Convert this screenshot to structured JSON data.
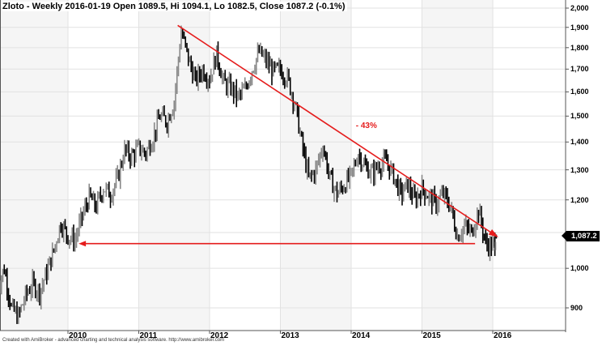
{
  "chart_data": {
    "type": "candlestick",
    "title": "Zloto - Weekly 2016-01-19 Open 1089.5, Hi 1094.1, Lo 1082.5, Close 1087.2 (-0.1%)",
    "instrument": "Zloto",
    "interval": "Weekly",
    "last_bar": {
      "date": "2016-01-19",
      "open": 1089.5,
      "high": 1094.1,
      "low": 1082.5,
      "close": 1087.2,
      "change_pct": -0.1
    },
    "yaxis": {
      "scale": "log",
      "position": "right",
      "ticks": [
        2000,
        1900,
        1800,
        1700,
        1600,
        1500,
        1400,
        1300,
        1200,
        1100,
        1000,
        900
      ],
      "tick_labels": [
        "2,000",
        "1,900",
        "1,800",
        "1,700",
        "1,600",
        "1,500",
        "1,400",
        "1,300",
        "1,200",
        "1,100",
        "1,000",
        "900"
      ],
      "range": [
        840,
        2020
      ]
    },
    "xaxis": {
      "ticks": [
        "2010",
        "2011",
        "2012",
        "2013",
        "2014",
        "2015",
        "2016"
      ]
    },
    "grid": true,
    "last_price_label": "1,087.2",
    "approx_series": {
      "x_year": [
        2009.0,
        2009.1,
        2009.2,
        2009.3,
        2009.4,
        2009.5,
        2009.6,
        2009.7,
        2009.8,
        2009.9,
        2010.0,
        2010.1,
        2010.2,
        2010.3,
        2010.4,
        2010.5,
        2010.6,
        2010.7,
        2010.8,
        2010.9,
        2011.0,
        2011.1,
        2011.2,
        2011.3,
        2011.4,
        2011.5,
        2011.6,
        2011.7,
        2011.8,
        2011.9,
        2012.0,
        2012.1,
        2012.2,
        2012.3,
        2012.4,
        2012.5,
        2012.6,
        2012.7,
        2012.8,
        2012.9,
        2013.0,
        2013.1,
        2013.2,
        2013.3,
        2013.4,
        2013.5,
        2013.6,
        2013.7,
        2013.8,
        2013.9,
        2014.0,
        2014.1,
        2014.2,
        2014.3,
        2014.4,
        2014.5,
        2014.6,
        2014.7,
        2014.8,
        2014.9,
        2015.0,
        2015.1,
        2015.2,
        2015.3,
        2015.4,
        2015.5,
        2015.6,
        2015.7,
        2015.8,
        2015.9,
        2016.0,
        2016.05
      ],
      "close": [
        950,
        1000,
        900,
        880,
        930,
        960,
        940,
        990,
        1050,
        1130,
        1090,
        1080,
        1150,
        1210,
        1180,
        1240,
        1220,
        1270,
        1370,
        1350,
        1380,
        1360,
        1420,
        1500,
        1480,
        1560,
        1880,
        1750,
        1650,
        1700,
        1660,
        1770,
        1640,
        1620,
        1580,
        1610,
        1700,
        1780,
        1740,
        1690,
        1700,
        1660,
        1560,
        1400,
        1270,
        1300,
        1390,
        1270,
        1220,
        1250,
        1280,
        1360,
        1310,
        1290,
        1320,
        1330,
        1280,
        1220,
        1250,
        1200,
        1240,
        1210,
        1190,
        1220,
        1180,
        1090,
        1120,
        1100,
        1170,
        1070,
        1060,
        1087
      ]
    },
    "annotations": [
      {
        "type": "trendline-arrow",
        "color": "#e51c1c",
        "from": {
          "x_year": 2011.55,
          "price": 1910
        },
        "to": {
          "x_year": 2016.05,
          "price": 1090
        }
      },
      {
        "type": "horizontal-arrow",
        "color": "#e51c1c",
        "price": 1068,
        "from_x_year": 2015.75,
        "to_x_year": 2010.15
      },
      {
        "type": "text",
        "text": "- 43%",
        "color": "#e51c1c",
        "x_year": 2014.1,
        "price": 1460
      }
    ]
  },
  "title": "Zloto - Weekly 2016-01-19 Open 1089.5, Hi 1094.1, Lo 1082.5, Close 1087.2 (-0.1%)",
  "annotation_text": "- 43%",
  "price_label": "1,087.2",
  "footer": "Created with AmiBroker - advanced charting and technical analysis software. http://www.amibroker.com",
  "colors": {
    "trendline": "#e51c1c",
    "band": "#f5f5f5",
    "grid": "#e2e2e2",
    "bars": "#000000"
  }
}
